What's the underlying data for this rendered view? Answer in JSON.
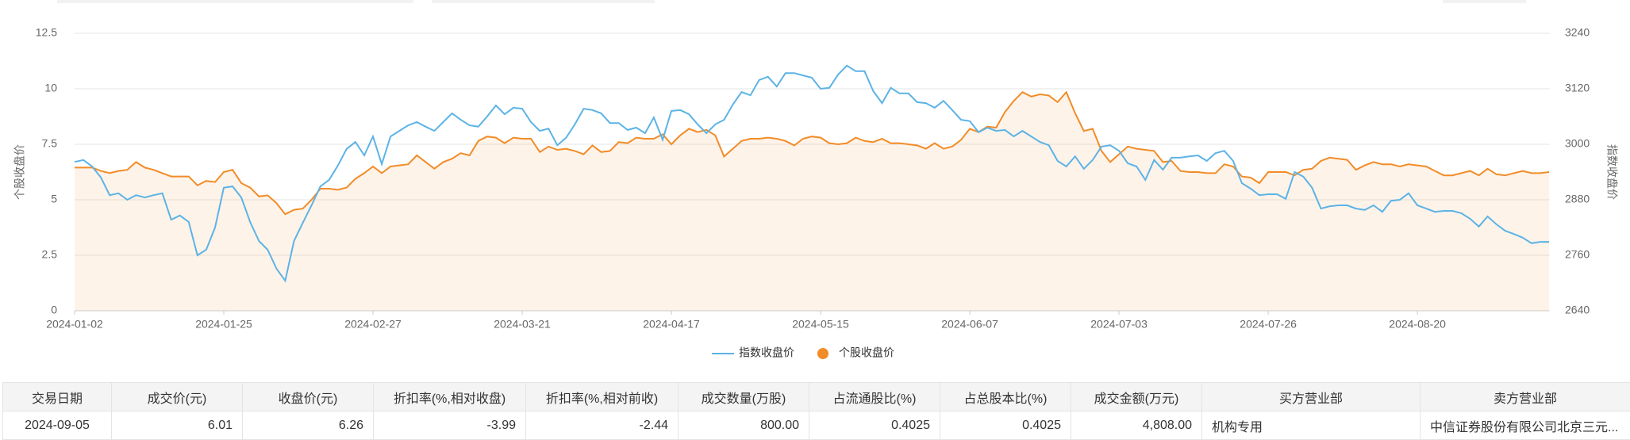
{
  "chart_data": {
    "type": "line",
    "ylabel": "个股收盘价",
    "y2label": "指数收盘价",
    "ylim": [
      0,
      12.5
    ],
    "yticks": [
      0,
      2.5,
      5,
      7.5,
      10,
      12.5
    ],
    "y2lim": [
      2640,
      3240
    ],
    "y2ticks": [
      2640,
      2760,
      2880,
      3000,
      3120,
      3240
    ],
    "grid": true,
    "legend": "bottom",
    "categories": [
      "2024-01-02",
      null,
      null,
      null,
      null,
      null,
      null,
      null,
      null,
      null,
      null,
      null,
      null,
      null,
      null,
      null,
      null,
      "2024-01-25",
      null,
      null,
      null,
      null,
      null,
      null,
      null,
      null,
      null,
      null,
      null,
      null,
      null,
      null,
      null,
      null,
      "2024-02-27",
      null,
      null,
      null,
      null,
      null,
      null,
      null,
      null,
      null,
      null,
      null,
      null,
      null,
      null,
      null,
      null,
      "2024-03-21",
      null,
      null,
      null,
      null,
      null,
      null,
      null,
      null,
      null,
      null,
      null,
      null,
      null,
      null,
      null,
      null,
      "2024-04-17",
      null,
      null,
      null,
      null,
      null,
      null,
      null,
      null,
      null,
      null,
      null,
      null,
      null,
      null,
      null,
      null,
      "2024-05-15",
      null,
      null,
      null,
      null,
      null,
      null,
      null,
      null,
      null,
      null,
      null,
      null,
      null,
      null,
      null,
      null,
      "2024-06-07",
      null,
      null,
      null,
      null,
      null,
      null,
      null,
      null,
      null,
      null,
      null,
      null,
      null,
      null,
      null,
      null,
      "2024-07-03",
      null,
      null,
      null,
      null,
      null,
      null,
      null,
      null,
      null,
      null,
      null,
      null,
      null,
      null,
      null,
      null,
      "2024-07-26",
      null,
      null,
      null,
      null,
      null,
      null,
      null,
      null,
      null,
      null,
      null,
      null,
      null,
      null,
      null,
      null,
      "2024-08-20",
      null,
      null,
      null,
      null,
      null,
      null,
      null,
      null,
      null,
      null,
      null,
      null,
      null,
      null,
      null
    ],
    "series": [
      {
        "name": "指数收盘价",
        "color": "#5cb3e6",
        "axis": "y2",
        "values": [
          2962,
          2966,
          2952,
          2928,
          2890,
          2894,
          2880,
          2890,
          2885,
          2890,
          2894,
          2837,
          2846,
          2832,
          2760,
          2772,
          2820,
          2906,
          2909,
          2885,
          2832,
          2791,
          2772,
          2731,
          2705,
          2791,
          2830,
          2868,
          2909,
          2923,
          2954,
          2990,
          3005,
          2976,
          3017,
          2957,
          3017,
          3029,
          3041,
          3048,
          3038,
          3029,
          3048,
          3067,
          3053,
          3041,
          3038,
          3060,
          3084,
          3065,
          3079,
          3077,
          3048,
          3029,
          3034,
          2998,
          3014,
          3043,
          3077,
          3074,
          3067,
          3046,
          3046,
          3031,
          3036,
          3024,
          3058,
          3010,
          3072,
          3074,
          3065,
          3043,
          3024,
          3043,
          3053,
          3086,
          3113,
          3106,
          3139,
          3146,
          3125,
          3154,
          3154,
          3149,
          3144,
          3120,
          3122,
          3151,
          3170,
          3158,
          3158,
          3115,
          3089,
          3122,
          3110,
          3110,
          3091,
          3089,
          3079,
          3094,
          3074,
          3053,
          3050,
          3026,
          3036,
          3029,
          3031,
          3017,
          3029,
          3017,
          3005,
          2998,
          2964,
          2952,
          2974,
          2947,
          2966,
          2995,
          2998,
          2986,
          2959,
          2952,
          2923,
          2966,
          2945,
          2971,
          2971,
          2974,
          2976,
          2964,
          2981,
          2986,
          2964,
          2916,
          2904,
          2890,
          2892,
          2892,
          2882,
          2940,
          2930,
          2906,
          2861,
          2866,
          2868,
          2868,
          2861,
          2858,
          2868,
          2854,
          2878,
          2880,
          2894,
          2868,
          2861,
          2854,
          2856,
          2856,
          2851,
          2839,
          2822,
          2844,
          2827,
          2813,
          2806,
          2798,
          2786,
          2789,
          2789
        ]
      },
      {
        "name": "个股收盘价",
        "color": "#f28c28",
        "area": true,
        "values": [
          6.45,
          6.45,
          6.45,
          6.3,
          6.2,
          6.3,
          6.35,
          6.7,
          6.45,
          6.35,
          6.2,
          6.05,
          6.05,
          6.05,
          5.65,
          5.85,
          5.8,
          6.25,
          6.35,
          5.75,
          5.55,
          5.15,
          5.2,
          4.85,
          4.35,
          4.55,
          4.6,
          5.0,
          5.5,
          5.5,
          5.45,
          5.55,
          5.95,
          6.2,
          6.5,
          6.2,
          6.5,
          6.55,
          6.6,
          7.0,
          6.7,
          6.4,
          6.7,
          6.85,
          7.1,
          7.0,
          7.65,
          7.85,
          7.8,
          7.55,
          7.8,
          7.75,
          7.75,
          7.15,
          7.4,
          7.25,
          7.3,
          7.2,
          7.05,
          7.45,
          7.15,
          7.2,
          7.6,
          7.55,
          7.8,
          7.75,
          7.75,
          7.95,
          7.5,
          7.9,
          8.2,
          8.05,
          8.15,
          7.9,
          6.95,
          7.3,
          7.65,
          7.75,
          7.75,
          7.8,
          7.75,
          7.65,
          7.45,
          7.75,
          7.85,
          7.8,
          7.55,
          7.5,
          7.55,
          7.8,
          7.65,
          7.6,
          7.75,
          7.55,
          7.55,
          7.5,
          7.45,
          7.3,
          7.55,
          7.3,
          7.4,
          7.7,
          8.2,
          8.05,
          8.3,
          8.25,
          8.95,
          9.45,
          9.85,
          9.65,
          9.75,
          9.7,
          9.4,
          9.85,
          8.9,
          8.1,
          8.2,
          7.2,
          6.7,
          7.05,
          7.4,
          7.3,
          7.25,
          7.2,
          6.7,
          6.75,
          6.3,
          6.25,
          6.25,
          6.2,
          6.2,
          6.6,
          6.5,
          6.05,
          6.0,
          5.75,
          6.25,
          6.25,
          6.25,
          6.1,
          6.35,
          6.4,
          6.75,
          6.9,
          6.85,
          6.8,
          6.35,
          6.55,
          6.7,
          6.6,
          6.6,
          6.5,
          6.6,
          6.55,
          6.5,
          6.3,
          6.1,
          6.1,
          6.2,
          6.3,
          6.1,
          6.4,
          6.15,
          6.1,
          6.2,
          6.3,
          6.2,
          6.2,
          6.25
        ]
      }
    ]
  },
  "table": {
    "columns": [
      "交易日期",
      "成交价(元)",
      "收盘价(元)",
      "折扣率(%,相对收盘)",
      "折扣率(%,相对前收)",
      "成交数量(万股)",
      "占流通股比(%)",
      "占总股本比(%)",
      "成交金额(万元)",
      "买方营业部",
      "卖方营业部"
    ],
    "rows": [
      [
        "2024-09-05",
        "6.01",
        "6.26",
        "-3.99",
        "-2.44",
        "800.00",
        "0.4025",
        "0.4025",
        "4,808.00",
        "机构专用",
        "中信证券股份有限公司北京三元..."
      ]
    ]
  }
}
